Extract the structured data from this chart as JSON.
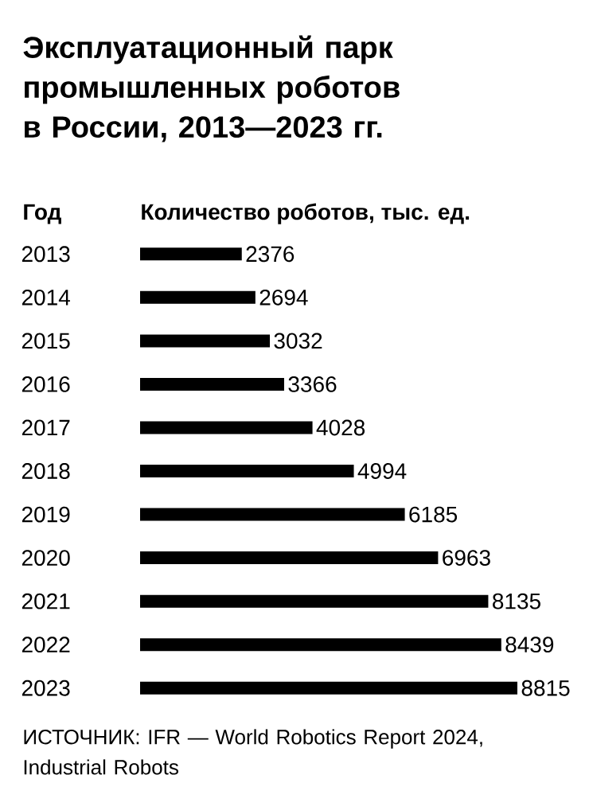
{
  "chart_data": {
    "type": "bar",
    "orientation": "horizontal",
    "title": "Эксплуатационный парк промышленных роботов в России, 2013—2023 гг.",
    "ylabel": "Год",
    "xlabel": "Количество роботов, тыс. ед.",
    "categories": [
      "2013",
      "2014",
      "2015",
      "2016",
      "2017",
      "2018",
      "2019",
      "2020",
      "2021",
      "2022",
      "2023"
    ],
    "values": [
      2376,
      2694,
      3032,
      3366,
      4028,
      4994,
      6185,
      6963,
      8135,
      8439,
      8815
    ],
    "color": "#000000",
    "data_labels": true,
    "annotations": [
      "ИСТОЧНИК: IFR — World Robotics Report 2024, Industrial Robots"
    ]
  }
}
